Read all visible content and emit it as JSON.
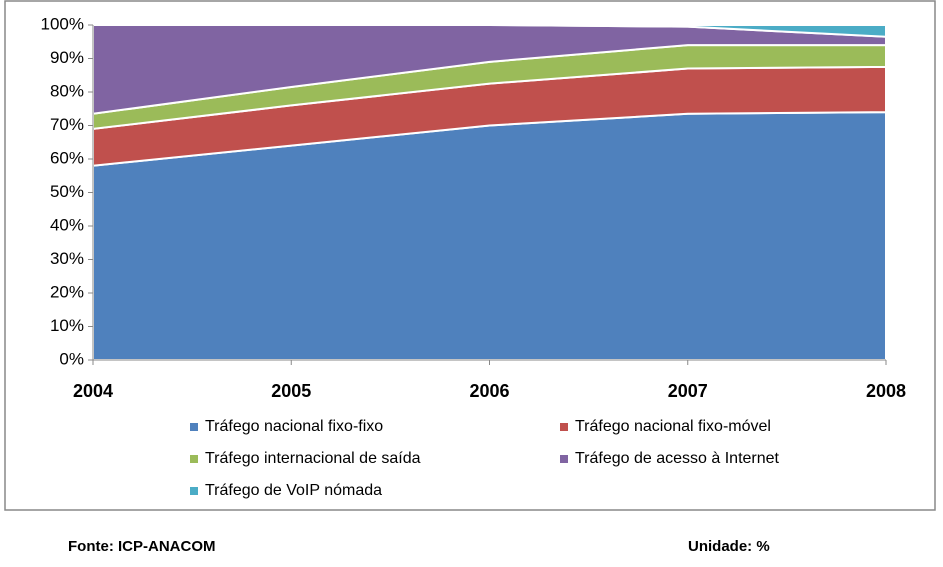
{
  "chart_data": {
    "type": "stacked_area",
    "x": [
      "2004",
      "2005",
      "2006",
      "2007",
      "2008"
    ],
    "series": [
      {
        "name": "Tráfego nacional fixo-fixo",
        "color": "#4f81bd",
        "values": [
          58,
          64,
          70,
          73.5,
          74
        ]
      },
      {
        "name": "Tráfego nacional fixo-móvel",
        "color": "#c0504d",
        "values": [
          11,
          12,
          12.5,
          13.5,
          13.5
        ]
      },
      {
        "name": "Tráfego internacional de saída",
        "color": "#9bbb59",
        "values": [
          4.5,
          5.5,
          6.5,
          7,
          6.5
        ]
      },
      {
        "name": "Tráfego de acesso à Internet",
        "color": "#8064a2",
        "values": [
          26.5,
          18.5,
          11,
          5.5,
          2.5
        ]
      },
      {
        "name": "Tráfego de VoIP nómada",
        "color": "#4bacc6",
        "values": [
          0,
          0,
          0,
          0.5,
          3.5
        ]
      }
    ],
    "ylim": [
      0,
      100
    ],
    "yticks": [
      {
        "value": 0,
        "label": "0%"
      },
      {
        "value": 10,
        "label": "10%"
      },
      {
        "value": 20,
        "label": "20%"
      },
      {
        "value": 30,
        "label": "30%"
      },
      {
        "value": 40,
        "label": "40%"
      },
      {
        "value": 50,
        "label": "50%"
      },
      {
        "value": 60,
        "label": "60%"
      },
      {
        "value": 70,
        "label": "70%"
      },
      {
        "value": 80,
        "label": "80%"
      },
      {
        "value": 90,
        "label": "90%"
      },
      {
        "value": 100,
        "label": "100%"
      }
    ],
    "grid": false,
    "legend": "bottom"
  },
  "footer": {
    "source": "Fonte: ICP-ANACOM",
    "unit": "Unidade: %"
  }
}
